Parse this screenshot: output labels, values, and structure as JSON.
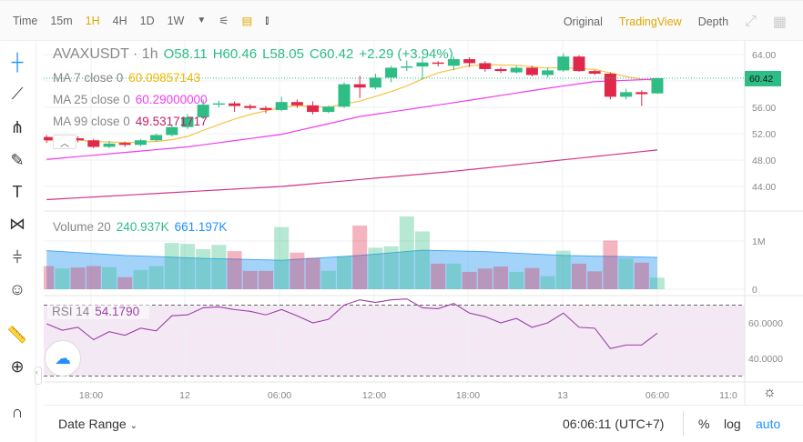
{
  "toolbar": {
    "items": [
      "Time",
      "15m",
      "1H",
      "4H",
      "1D",
      "1W"
    ],
    "active": "1H",
    "right": [
      "Original",
      "TradingView",
      "Depth"
    ],
    "active_right": "TradingView"
  },
  "left_tools": [
    "crosshair-icon",
    "trend-line-icon",
    "pitchfork-icon",
    "brush-icon",
    "text-icon",
    "pattern-icon",
    "measure-icon",
    "emoji-icon",
    "ruler-icon",
    "zoom-in-icon",
    "magnet-icon"
  ],
  "legend": {
    "symbol": "AVAXUSDT · 1h",
    "o": "O58.11",
    "h": "H60.46",
    "l": "L58.05",
    "c": "C60.42",
    "change": "+2.29 (+3.94%)",
    "ma7_label": "MA 7 close 0",
    "ma7_value": "60.09857143",
    "ma25_label": "MA 25 close 0",
    "ma25_value": "60.29000000",
    "ma99_label": "MA 99 close 0",
    "ma99_value": "49.53171717",
    "volume_label": "Volume 20",
    "volume_value": "240.937K",
    "volume_ma": "661.197K",
    "rsi_label": "RSI 14",
    "rsi_value": "54.1790"
  },
  "price_axis": [
    "64.00",
    "60.00",
    "56.00",
    "52.00",
    "48.00",
    "44.00"
  ],
  "last_price": "60.42",
  "volume_axis": [
    "1M",
    "0"
  ],
  "rsi_axis": [
    "60.0000",
    "40.0000"
  ],
  "time_axis": [
    "18:00",
    "12",
    "06:00",
    "12:00",
    "18:00",
    "13",
    "06:00",
    "11:0"
  ],
  "bottom": {
    "date_range": "Date Range",
    "clock": "06:06:11 (UTC+7)",
    "pct": "%",
    "log": "log",
    "auto": "auto"
  },
  "colors": {
    "up": "#2ebd85",
    "down": "#e0294a",
    "ma7": "#f5c242",
    "ma25": "#f03cf0",
    "ma99": "#d4358a",
    "rsi": "#9c3fa8",
    "accent": "#e0a800",
    "blue": "#1e90ff"
  },
  "chart_data": {
    "type": "candlestick",
    "symbol": "AVAXUSDT",
    "interval": "1h",
    "ylim": [
      42,
      65.5
    ],
    "candles": [
      [
        51.5,
        51.8,
        50.6,
        51.0
      ],
      [
        51.0,
        51.4,
        50.8,
        51.2
      ],
      [
        51.3,
        51.6,
        50.7,
        51.0
      ],
      [
        51.0,
        51.2,
        49.8,
        50.0
      ],
      [
        50.0,
        50.9,
        49.8,
        50.5
      ],
      [
        50.6,
        50.8,
        50.0,
        50.3
      ],
      [
        50.3,
        51.2,
        50.1,
        51.0
      ],
      [
        51.0,
        52.0,
        50.8,
        51.8
      ],
      [
        51.8,
        53.4,
        51.6,
        53.0
      ],
      [
        53.0,
        55.0,
        52.7,
        54.5
      ],
      [
        54.5,
        57.2,
        54.2,
        56.4
      ],
      [
        56.4,
        57.0,
        56.0,
        56.6
      ],
      [
        56.6,
        56.9,
        55.3,
        56.2
      ],
      [
        56.2,
        56.5,
        55.6,
        55.9
      ],
      [
        55.9,
        56.2,
        55.1,
        55.6
      ],
      [
        55.6,
        57.6,
        55.4,
        56.8
      ],
      [
        56.8,
        57.2,
        55.9,
        56.3
      ],
      [
        56.3,
        56.9,
        54.9,
        55.3
      ],
      [
        55.3,
        56.3,
        55.1,
        56.1
      ],
      [
        56.1,
        59.8,
        55.9,
        59.5
      ],
      [
        59.5,
        60.8,
        57.4,
        59.0
      ],
      [
        59.0,
        61.1,
        58.7,
        60.5
      ],
      [
        60.5,
        62.3,
        59.8,
        62.0
      ],
      [
        62.0,
        63.1,
        61.5,
        62.2
      ],
      [
        62.2,
        63.6,
        60.2,
        62.8
      ],
      [
        62.8,
        63.0,
        62.2,
        62.6
      ],
      [
        62.3,
        63.7,
        61.6,
        63.3
      ],
      [
        63.3,
        63.6,
        62.1,
        62.7
      ],
      [
        62.7,
        63.0,
        61.4,
        61.8
      ],
      [
        61.8,
        62.1,
        61.2,
        61.5
      ],
      [
        61.3,
        62.3,
        61.1,
        62.0
      ],
      [
        62.0,
        62.3,
        60.7,
        60.9
      ],
      [
        60.9,
        62.0,
        60.5,
        61.6
      ],
      [
        61.6,
        64.2,
        61.4,
        63.7
      ],
      [
        63.7,
        63.9,
        61.4,
        61.5
      ],
      [
        61.5,
        61.7,
        60.9,
        61.1
      ],
      [
        61.1,
        61.3,
        57.2,
        57.6
      ],
      [
        57.6,
        58.8,
        57.2,
        58.3
      ],
      [
        58.3,
        58.6,
        56.2,
        58.0
      ],
      [
        58.11,
        60.46,
        58.05,
        60.42
      ]
    ],
    "ma25": [
      [
        0,
        48.1
      ],
      [
        9,
        50.0
      ],
      [
        15,
        51.9
      ],
      [
        20,
        54.6
      ],
      [
        26,
        56.7
      ],
      [
        32,
        58.9
      ],
      [
        35,
        59.9
      ],
      [
        39,
        60.29
      ]
    ],
    "ma99": [
      [
        0,
        42.0
      ],
      [
        15,
        44.0
      ],
      [
        26,
        46.3
      ],
      [
        39,
        49.53
      ]
    ],
    "volume_k": [
      480,
      430,
      450,
      480,
      460,
      250,
      400,
      480,
      960,
      940,
      830,
      920,
      790,
      380,
      380,
      1290,
      760,
      650,
      380,
      690,
      1320,
      860,
      890,
      1510,
      1200,
      530,
      530,
      360,
      430,
      470,
      360,
      440,
      270,
      800,
      530,
      370,
      1010,
      640,
      550,
      240
    ],
    "volume_ma_k": [
      [
        0,
        800
      ],
      [
        5,
        700
      ],
      [
        10,
        640
      ],
      [
        15,
        600
      ],
      [
        20,
        700
      ],
      [
        24,
        810
      ],
      [
        28,
        780
      ],
      [
        33,
        700
      ],
      [
        39,
        661
      ]
    ],
    "rsi": [
      59.5,
      55.8,
      57.5,
      50.5,
      55,
      53,
      57,
      55.5,
      64,
      64.5,
      68.5,
      69,
      67.5,
      66.5,
      64.5,
      67.5,
      64,
      60,
      62,
      70,
      73,
      71.5,
      73,
      73.5,
      68.5,
      68,
      71,
      65.5,
      63.5,
      60,
      62.5,
      57.5,
      60,
      65.5,
      57.5,
      57,
      45.5,
      47.5,
      47.5,
      54.179
    ],
    "rsi_bands": [
      70,
      30
    ]
  }
}
